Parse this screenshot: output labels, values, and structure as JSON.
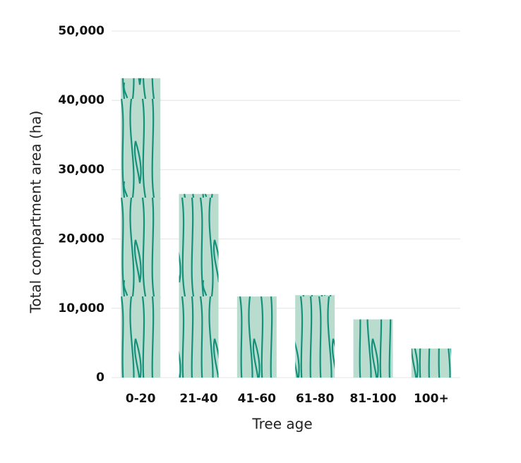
{
  "chart_data": {
    "type": "bar",
    "x_label": "Tree age",
    "y_label": "Total compartment area (ha)",
    "categories": [
      "0-20",
      "21-40",
      "41-60",
      "61-80",
      "81-100",
      "100+"
    ],
    "values": [
      43200,
      26500,
      11700,
      11900,
      8400,
      4200
    ],
    "color": "#b9dccf",
    "texture_color": "#13917a",
    "ylim": [
      0,
      50000
    ],
    "yticks": [
      0,
      {
        "value": 10000,
        "label": "10,000"
      },
      {
        "value": 20000,
        "label": "20,000"
      },
      {
        "value": 30000,
        "label": "30,000"
      },
      {
        "value": 40000,
        "label": "40,000"
      },
      {
        "value": 50000,
        "label": "50,000"
      }
    ],
    "grid": true
  }
}
